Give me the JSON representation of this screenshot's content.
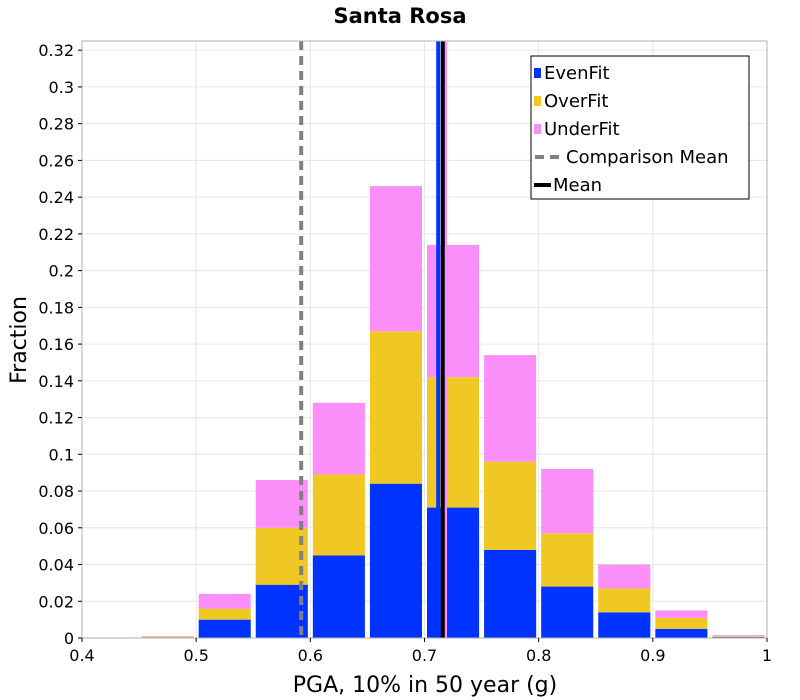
{
  "chart_data": {
    "type": "bar",
    "stacked": true,
    "title": "Santa Rosa",
    "xlabel": "PGA, 10% in 50 year (g)",
    "ylabel": "Fraction",
    "xlim": [
      0.4,
      1.0
    ],
    "ylim": [
      0,
      0.325
    ],
    "x_ticks": [
      "0.4",
      "0.5",
      "0.6",
      "0.7",
      "0.8",
      "0.9",
      "1"
    ],
    "y_ticks": [
      "0",
      "0.02",
      "0.04",
      "0.06",
      "0.08",
      "0.1",
      "0.12",
      "0.14",
      "0.16",
      "0.18",
      "0.2",
      "0.22",
      "0.24",
      "0.26",
      "0.28",
      "0.3",
      "0.32"
    ],
    "bin_width": 0.05,
    "bin_centers": [
      0.425,
      0.475,
      0.525,
      0.575,
      0.625,
      0.675,
      0.725,
      0.775,
      0.825,
      0.875,
      0.925,
      0.975
    ],
    "series": [
      {
        "name": "EvenFit",
        "color": "#0033ff",
        "values": [
          0,
          0.0003,
          0.01,
          0.029,
          0.045,
          0.084,
          0.071,
          0.048,
          0.028,
          0.014,
          0.005,
          0.0005
        ]
      },
      {
        "name": "OverFit",
        "color": "#f0c823",
        "values": [
          0,
          0.0003,
          0.006,
          0.031,
          0.044,
          0.083,
          0.071,
          0.048,
          0.029,
          0.013,
          0.006,
          0.0005
        ]
      },
      {
        "name": "UnderFit",
        "color": "#fa8ffa",
        "values": [
          0.0002,
          0.0004,
          0.008,
          0.026,
          0.039,
          0.079,
          0.072,
          0.058,
          0.035,
          0.013,
          0.004,
          0.0005
        ]
      }
    ],
    "comparison_mean": {
      "label": "Comparison Mean",
      "x": 0.592,
      "color": "#808080"
    },
    "mean": {
      "label": "Mean",
      "x": 0.716,
      "color": "#000000"
    },
    "series_mean_lines": [
      {
        "series": "EvenFit",
        "x": 0.712,
        "color": "#0033ff"
      },
      {
        "series": "UnderFit",
        "x": 0.718,
        "color": "#fa8ffa"
      }
    ],
    "legend_position": "top-right"
  }
}
